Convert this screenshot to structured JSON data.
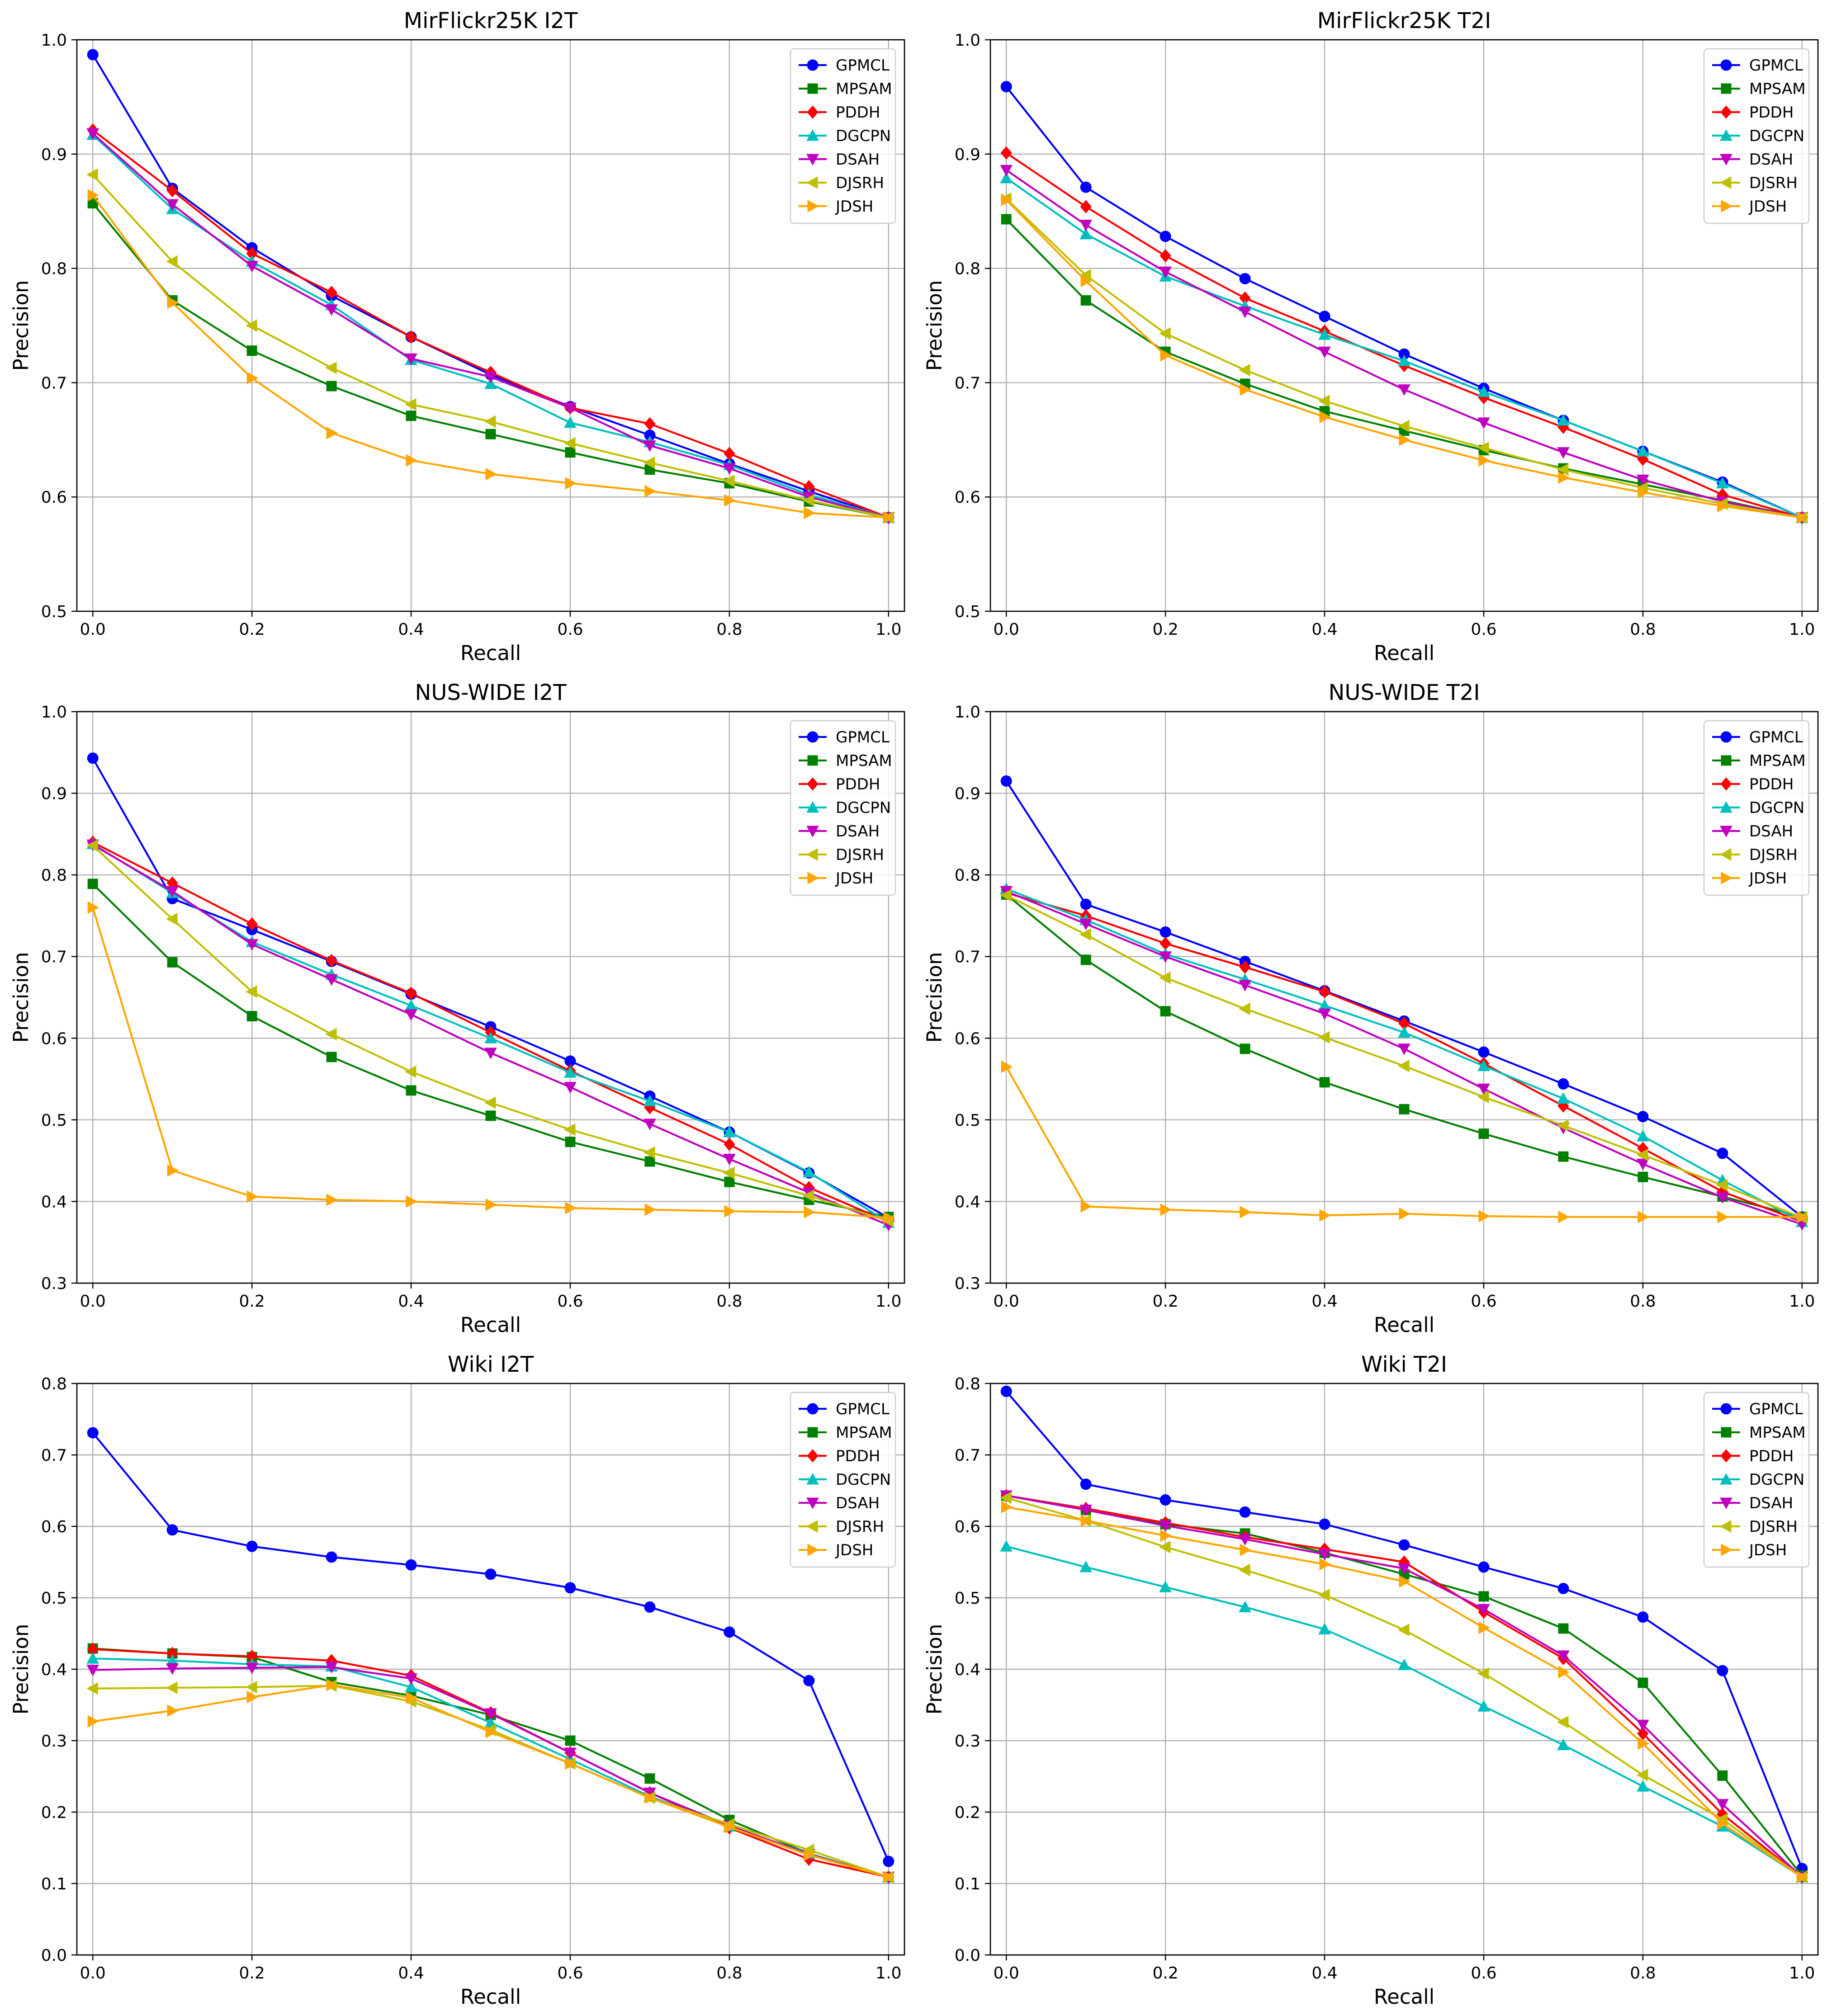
{
  "figure": {
    "colors": {
      "GPMCL": "#0000ff",
      "MPSAM": "#008000",
      "PDDH": "#ff0000",
      "DGCPN": "#00bfbf",
      "DSAH": "#bf00bf",
      "DJSRH": "#bfbf00",
      "JDSH": "#ffa500"
    },
    "markers": {
      "GPMCL": "circle",
      "MPSAM": "square",
      "PDDH": "diamond",
      "DGCPN": "triangle-up",
      "DSAH": "triangle-down",
      "DJSRH": "triangle-left",
      "JDSH": "triangle-right"
    }
  },
  "chart_data": [
    {
      "type": "line",
      "title": "MirFlickr25K I2T",
      "xlabel": "Recall",
      "ylabel": "Precision",
      "xlim": [
        -0.02,
        1.02
      ],
      "ylim": [
        0.5,
        1.0
      ],
      "xticks": [
        "0.0",
        "0.2",
        "0.4",
        "0.6",
        "0.8",
        "1.0"
      ],
      "yticks": [
        "0.5",
        "0.6",
        "0.7",
        "0.8",
        "0.9",
        "1.0"
      ],
      "grid": true,
      "legend": "top-right",
      "x": [
        0,
        0.1,
        0.2,
        0.3,
        0.4,
        0.5,
        0.6,
        0.7,
        0.8,
        0.9,
        1.0
      ],
      "series": [
        {
          "name": "GPMCL",
          "values": [
            0.987,
            0.87,
            0.818,
            0.776,
            0.74,
            0.707,
            0.679,
            0.654,
            0.629,
            0.605,
            0.582
          ]
        },
        {
          "name": "MPSAM",
          "values": [
            0.857,
            0.772,
            0.728,
            0.697,
            0.671,
            0.655,
            0.639,
            0.624,
            0.612,
            0.596,
            0.582
          ]
        },
        {
          "name": "PDDH",
          "values": [
            0.921,
            0.868,
            0.813,
            0.779,
            0.74,
            0.709,
            0.678,
            0.664,
            0.638,
            0.609,
            0.582
          ]
        },
        {
          "name": "DGCPN",
          "values": [
            0.917,
            0.852,
            0.806,
            0.768,
            0.72,
            0.699,
            0.665,
            0.648,
            0.628,
            0.602,
            0.582
          ]
        },
        {
          "name": "DSAH",
          "values": [
            0.918,
            0.856,
            0.802,
            0.764,
            0.721,
            0.705,
            0.678,
            0.645,
            0.625,
            0.6,
            0.582
          ]
        },
        {
          "name": "DJSRH",
          "values": [
            0.882,
            0.806,
            0.75,
            0.713,
            0.681,
            0.666,
            0.647,
            0.63,
            0.614,
            0.597,
            0.582
          ]
        },
        {
          "name": "JDSH",
          "values": [
            0.864,
            0.77,
            0.704,
            0.656,
            0.632,
            0.62,
            0.612,
            0.605,
            0.597,
            0.586,
            0.582
          ]
        }
      ]
    },
    {
      "type": "line",
      "title": "MirFlickr25K T2I",
      "xlabel": "Recall",
      "ylabel": "Precision",
      "xlim": [
        -0.02,
        1.02
      ],
      "ylim": [
        0.5,
        1.0
      ],
      "xticks": [
        "0.0",
        "0.2",
        "0.4",
        "0.6",
        "0.8",
        "1.0"
      ],
      "yticks": [
        "0.5",
        "0.6",
        "0.7",
        "0.8",
        "0.9",
        "1.0"
      ],
      "grid": true,
      "legend": "top-right",
      "x": [
        0,
        0.1,
        0.2,
        0.3,
        0.4,
        0.5,
        0.6,
        0.7,
        0.8,
        0.9,
        1.0
      ],
      "series": [
        {
          "name": "GPMCL",
          "values": [
            0.959,
            0.871,
            0.828,
            0.791,
            0.758,
            0.725,
            0.695,
            0.667,
            0.64,
            0.613,
            0.582
          ]
        },
        {
          "name": "MPSAM",
          "values": [
            0.843,
            0.772,
            0.727,
            0.699,
            0.675,
            0.658,
            0.641,
            0.625,
            0.611,
            0.597,
            0.582
          ]
        },
        {
          "name": "PDDH",
          "values": [
            0.901,
            0.854,
            0.811,
            0.774,
            0.745,
            0.715,
            0.687,
            0.661,
            0.633,
            0.602,
            0.582
          ]
        },
        {
          "name": "DGCPN",
          "values": [
            0.879,
            0.83,
            0.793,
            0.767,
            0.742,
            0.719,
            0.692,
            0.667,
            0.64,
            0.612,
            0.582
          ]
        },
        {
          "name": "DSAH",
          "values": [
            0.886,
            0.838,
            0.797,
            0.762,
            0.727,
            0.694,
            0.665,
            0.639,
            0.615,
            0.596,
            0.582
          ]
        },
        {
          "name": "DJSRH",
          "values": [
            0.861,
            0.794,
            0.743,
            0.711,
            0.684,
            0.662,
            0.643,
            0.624,
            0.608,
            0.594,
            0.582
          ]
        },
        {
          "name": "JDSH",
          "values": [
            0.86,
            0.789,
            0.724,
            0.694,
            0.67,
            0.65,
            0.632,
            0.617,
            0.604,
            0.592,
            0.582
          ]
        }
      ]
    },
    {
      "type": "line",
      "title": "NUS-WIDE I2T",
      "xlabel": "Recall",
      "ylabel": "Precision",
      "xlim": [
        -0.02,
        1.02
      ],
      "ylim": [
        0.3,
        1.0
      ],
      "xticks": [
        "0.0",
        "0.2",
        "0.4",
        "0.6",
        "0.8",
        "1.0"
      ],
      "yticks": [
        "0.3",
        "0.4",
        "0.5",
        "0.6",
        "0.7",
        "0.8",
        "0.9",
        "1.0"
      ],
      "grid": true,
      "legend": "top-right",
      "x": [
        0,
        0.1,
        0.2,
        0.3,
        0.4,
        0.5,
        0.6,
        0.7,
        0.8,
        0.9,
        1.0
      ],
      "series": [
        {
          "name": "GPMCL",
          "values": [
            0.943,
            0.771,
            0.733,
            0.694,
            0.654,
            0.614,
            0.572,
            0.529,
            0.485,
            0.435,
            0.38
          ]
        },
        {
          "name": "MPSAM",
          "values": [
            0.789,
            0.693,
            0.627,
            0.577,
            0.536,
            0.505,
            0.473,
            0.449,
            0.424,
            0.402,
            0.381
          ]
        },
        {
          "name": "PDDH",
          "values": [
            0.84,
            0.79,
            0.74,
            0.695,
            0.655,
            0.607,
            0.56,
            0.515,
            0.47,
            0.417,
            0.375
          ]
        },
        {
          "name": "DGCPN",
          "values": [
            0.838,
            0.778,
            0.718,
            0.678,
            0.64,
            0.6,
            0.558,
            0.523,
            0.485,
            0.436,
            0.374
          ]
        },
        {
          "name": "DSAH",
          "values": [
            0.837,
            0.78,
            0.715,
            0.672,
            0.629,
            0.582,
            0.54,
            0.495,
            0.452,
            0.411,
            0.371
          ]
        },
        {
          "name": "DJSRH",
          "values": [
            0.836,
            0.746,
            0.657,
            0.605,
            0.559,
            0.521,
            0.488,
            0.46,
            0.435,
            0.407,
            0.376
          ]
        },
        {
          "name": "JDSH",
          "values": [
            0.76,
            0.438,
            0.406,
            0.402,
            0.4,
            0.396,
            0.392,
            0.39,
            0.388,
            0.387,
            0.38
          ]
        }
      ]
    },
    {
      "type": "line",
      "title": "NUS-WIDE T2I",
      "xlabel": "Recall",
      "ylabel": "Precision",
      "xlim": [
        -0.02,
        1.02
      ],
      "ylim": [
        0.3,
        1.0
      ],
      "xticks": [
        "0.0",
        "0.2",
        "0.4",
        "0.6",
        "0.8",
        "1.0"
      ],
      "yticks": [
        "0.3",
        "0.4",
        "0.5",
        "0.6",
        "0.7",
        "0.8",
        "0.9",
        "1.0"
      ],
      "grid": true,
      "legend": "top-right",
      "x": [
        0,
        0.1,
        0.2,
        0.3,
        0.4,
        0.5,
        0.6,
        0.7,
        0.8,
        0.9,
        1.0
      ],
      "series": [
        {
          "name": "GPMCL",
          "values": [
            0.915,
            0.764,
            0.73,
            0.694,
            0.658,
            0.621,
            0.583,
            0.544,
            0.504,
            0.459,
            0.381
          ]
        },
        {
          "name": "MPSAM",
          "values": [
            0.776,
            0.696,
            0.633,
            0.587,
            0.546,
            0.513,
            0.483,
            0.455,
            0.43,
            0.406,
            0.381
          ]
        },
        {
          "name": "PDDH",
          "values": [
            0.778,
            0.75,
            0.716,
            0.687,
            0.657,
            0.618,
            0.569,
            0.517,
            0.465,
            0.412,
            0.375
          ]
        },
        {
          "name": "DGCPN",
          "values": [
            0.783,
            0.745,
            0.703,
            0.672,
            0.64,
            0.607,
            0.566,
            0.526,
            0.48,
            0.426,
            0.375
          ]
        },
        {
          "name": "DSAH",
          "values": [
            0.78,
            0.74,
            0.7,
            0.665,
            0.63,
            0.587,
            0.538,
            0.49,
            0.446,
            0.405,
            0.372
          ]
        },
        {
          "name": "DJSRH",
          "values": [
            0.775,
            0.727,
            0.674,
            0.636,
            0.601,
            0.566,
            0.528,
            0.493,
            0.457,
            0.42,
            0.38
          ]
        },
        {
          "name": "JDSH",
          "values": [
            0.565,
            0.394,
            0.39,
            0.387,
            0.383,
            0.385,
            0.382,
            0.381,
            0.381,
            0.381,
            0.381
          ]
        }
      ]
    },
    {
      "type": "line",
      "title": "Wiki I2T",
      "xlabel": "Recall",
      "ylabel": "Precision",
      "xlim": [
        -0.02,
        1.02
      ],
      "ylim": [
        0.0,
        0.8
      ],
      "xticks": [
        "0.0",
        "0.2",
        "0.4",
        "0.6",
        "0.8",
        "1.0"
      ],
      "yticks": [
        "0.0",
        "0.1",
        "0.2",
        "0.3",
        "0.4",
        "0.5",
        "0.6",
        "0.7",
        "0.8"
      ],
      "grid": true,
      "legend": "top-right",
      "x": [
        0,
        0.1,
        0.2,
        0.3,
        0.4,
        0.5,
        0.6,
        0.7,
        0.8,
        0.9,
        1.0
      ],
      "series": [
        {
          "name": "GPMCL",
          "values": [
            0.731,
            0.595,
            0.572,
            0.557,
            0.546,
            0.533,
            0.514,
            0.487,
            0.452,
            0.384,
            0.131
          ]
        },
        {
          "name": "MPSAM",
          "values": [
            0.429,
            0.422,
            0.417,
            0.382,
            0.363,
            0.336,
            0.3,
            0.247,
            0.189,
            0.142,
            0.109
          ]
        },
        {
          "name": "PDDH",
          "values": [
            0.428,
            0.422,
            0.418,
            0.412,
            0.391,
            0.339,
            0.283,
            0.227,
            0.178,
            0.134,
            0.109
          ]
        },
        {
          "name": "DGCPN",
          "values": [
            0.415,
            0.412,
            0.407,
            0.404,
            0.375,
            0.325,
            0.274,
            0.222,
            0.18,
            0.142,
            0.109
          ]
        },
        {
          "name": "DSAH",
          "values": [
            0.399,
            0.401,
            0.402,
            0.403,
            0.387,
            0.338,
            0.283,
            0.227,
            0.181,
            0.141,
            0.109
          ]
        },
        {
          "name": "DJSRH",
          "values": [
            0.373,
            0.374,
            0.375,
            0.377,
            0.355,
            0.315,
            0.268,
            0.22,
            0.183,
            0.147,
            0.109
          ]
        },
        {
          "name": "JDSH",
          "values": [
            0.327,
            0.342,
            0.361,
            0.378,
            0.36,
            0.312,
            0.268,
            0.22,
            0.179,
            0.14,
            0.109
          ]
        }
      ]
    },
    {
      "type": "line",
      "title": "Wiki T2I",
      "xlabel": "Recall",
      "ylabel": "Precision",
      "xlim": [
        -0.02,
        1.02
      ],
      "ylim": [
        0.0,
        0.8
      ],
      "xticks": [
        "0.0",
        "0.2",
        "0.4",
        "0.6",
        "0.8",
        "1.0"
      ],
      "yticks": [
        "0.0",
        "0.1",
        "0.2",
        "0.3",
        "0.4",
        "0.5",
        "0.6",
        "0.7",
        "0.8"
      ],
      "grid": true,
      "legend": "top-right",
      "x": [
        0,
        0.1,
        0.2,
        0.3,
        0.4,
        0.5,
        0.6,
        0.7,
        0.8,
        0.9,
        1.0
      ],
      "series": [
        {
          "name": "GPMCL",
          "values": [
            0.789,
            0.659,
            0.637,
            0.62,
            0.603,
            0.574,
            0.543,
            0.513,
            0.473,
            0.398,
            0.121
          ]
        },
        {
          "name": "MPSAM",
          "values": [
            0.643,
            0.623,
            0.603,
            0.59,
            0.563,
            0.533,
            0.502,
            0.457,
            0.381,
            0.251,
            0.111
          ]
        },
        {
          "name": "PDDH",
          "values": [
            0.643,
            0.625,
            0.605,
            0.585,
            0.568,
            0.55,
            0.48,
            0.415,
            0.31,
            0.197,
            0.109
          ]
        },
        {
          "name": "DGCPN",
          "values": [
            0.572,
            0.543,
            0.515,
            0.487,
            0.456,
            0.406,
            0.348,
            0.294,
            0.236,
            0.18,
            0.109
          ]
        },
        {
          "name": "DSAH",
          "values": [
            0.643,
            0.623,
            0.601,
            0.582,
            0.561,
            0.541,
            0.484,
            0.419,
            0.322,
            0.211,
            0.109
          ]
        },
        {
          "name": "DJSRH",
          "values": [
            0.64,
            0.608,
            0.571,
            0.539,
            0.504,
            0.455,
            0.394,
            0.326,
            0.252,
            0.19,
            0.109
          ]
        },
        {
          "name": "JDSH",
          "values": [
            0.627,
            0.608,
            0.587,
            0.567,
            0.547,
            0.523,
            0.458,
            0.396,
            0.296,
            0.184,
            0.109
          ]
        }
      ]
    }
  ]
}
